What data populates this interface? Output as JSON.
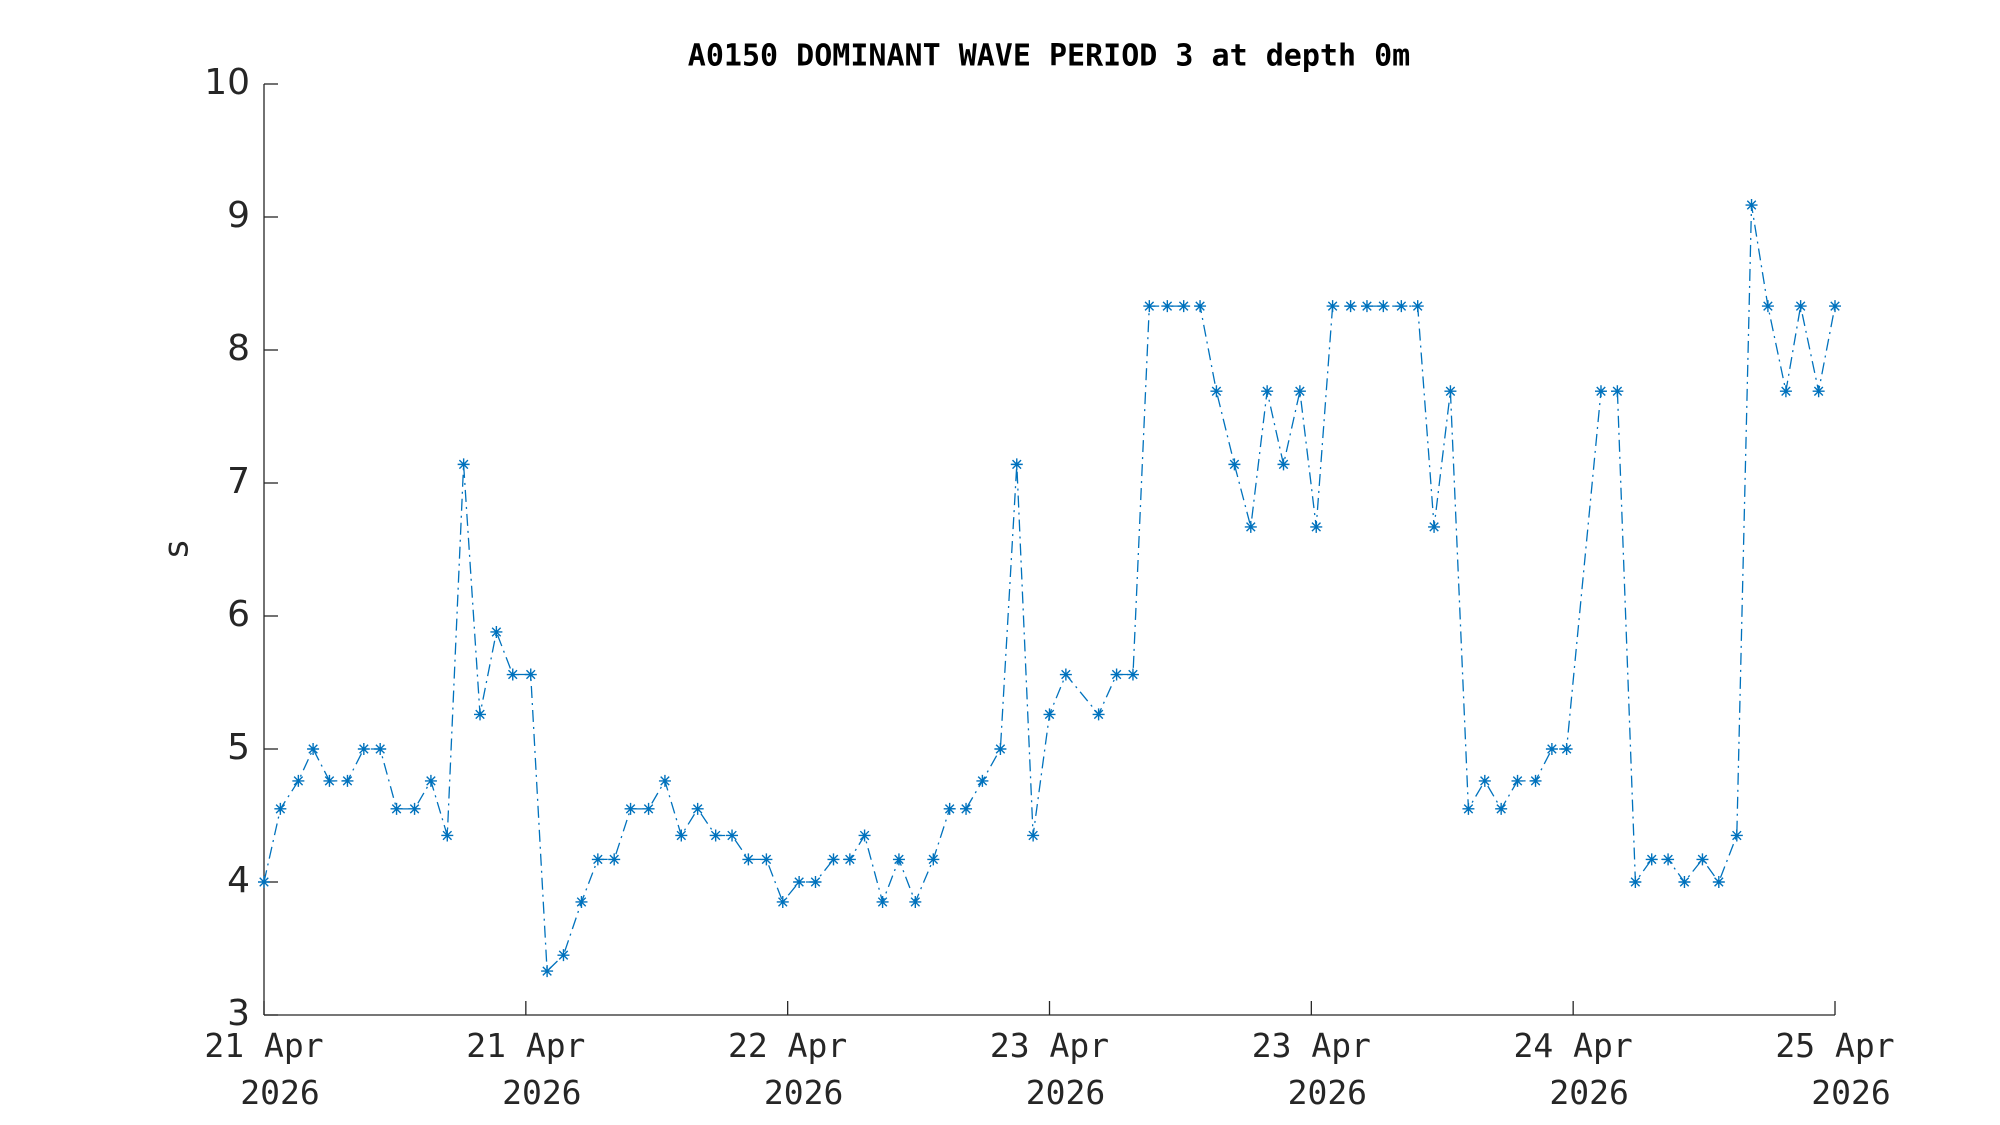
{
  "chart_data": {
    "type": "line",
    "title": "A0150 DOMINANT WAVE PERIOD 3 at depth 0m",
    "y_label": "s",
    "color": "#0072bd",
    "line_style": "dash-dot",
    "marker": "asterisk",
    "x": [
      0,
      1.0,
      2.1,
      3.0,
      4.0,
      5.1,
      6.1,
      7.1,
      8.1,
      9.2,
      10.2,
      11.2,
      12.2,
      13.2,
      14.2,
      15.2,
      16.3,
      17.3,
      18.3,
      19.4,
      20.4,
      21.4,
      22.4,
      23.5,
      24.5,
      25.5,
      26.5,
      27.6,
      28.6,
      29.6,
      30.7,
      31.7,
      32.7,
      33.7,
      34.8,
      35.8,
      36.7,
      37.8,
      38.8,
      39.8,
      40.9,
      41.9,
      42.9,
      43.9,
      45.0,
      46.0,
      47.0,
      48.0,
      49.0,
      51.0,
      52.1,
      53.1,
      54.1,
      55.2,
      56.2,
      57.2,
      58.2,
      59.3,
      60.3,
      61.3,
      62.3,
      63.3,
      64.3,
      65.3,
      66.4,
      67.4,
      68.4,
      69.5,
      70.5,
      71.5,
      72.5,
      73.6,
      74.6,
      75.6,
      76.6,
      77.7,
      78.7,
      79.6,
      81.7,
      82.7,
      83.8,
      84.8,
      85.8,
      86.8,
      87.9,
      88.9,
      90.0,
      90.9,
      91.9,
      93.0,
      93.9,
      95.0,
      96.0
    ],
    "values": [
      4.0,
      4.55,
      4.76,
      5.0,
      4.76,
      4.76,
      5.0,
      5.0,
      4.55,
      4.55,
      4.76,
      4.35,
      7.14,
      5.26,
      5.88,
      5.56,
      5.56,
      3.33,
      3.45,
      3.85,
      4.17,
      4.17,
      4.55,
      4.55,
      4.76,
      4.35,
      4.55,
      4.35,
      4.35,
      4.17,
      4.17,
      3.85,
      4.0,
      4.0,
      4.17,
      4.17,
      4.35,
      3.85,
      4.17,
      3.85,
      4.17,
      4.55,
      4.55,
      4.76,
      5.0,
      7.14,
      4.35,
      5.26,
      5.56,
      5.26,
      5.56,
      5.56,
      8.33,
      8.33,
      8.33,
      8.33,
      7.69,
      7.14,
      6.67,
      7.69,
      7.14,
      7.69,
      6.67,
      8.33,
      8.33,
      8.33,
      8.33,
      8.33,
      8.33,
      6.67,
      7.69,
      4.55,
      4.76,
      4.55,
      4.76,
      4.76,
      5.0,
      5.0,
      7.69,
      7.69,
      4.0,
      4.17,
      4.17,
      4.0,
      4.17,
      4.0,
      4.35,
      9.09,
      8.33,
      7.69,
      8.33,
      7.69,
      8.33
    ],
    "xlim": [
      0,
      96
    ],
    "xticks": [
      {
        "value": 0,
        "label": "21 Apr 2026"
      },
      {
        "value": 16,
        "label": "21 Apr 2026"
      },
      {
        "value": 32,
        "label": "22 Apr 2026"
      },
      {
        "value": 48,
        "label": "23 Apr 2026"
      },
      {
        "value": 64,
        "label": "23 Apr 2026"
      },
      {
        "value": 80,
        "label": "24 Apr 2026"
      },
      {
        "value": 96,
        "label": "25 Apr 2026"
      }
    ],
    "ylim": [
      3,
      10
    ],
    "yticks": [
      3,
      4,
      5,
      6,
      7,
      8,
      9,
      10
    ],
    "grid": false
  }
}
